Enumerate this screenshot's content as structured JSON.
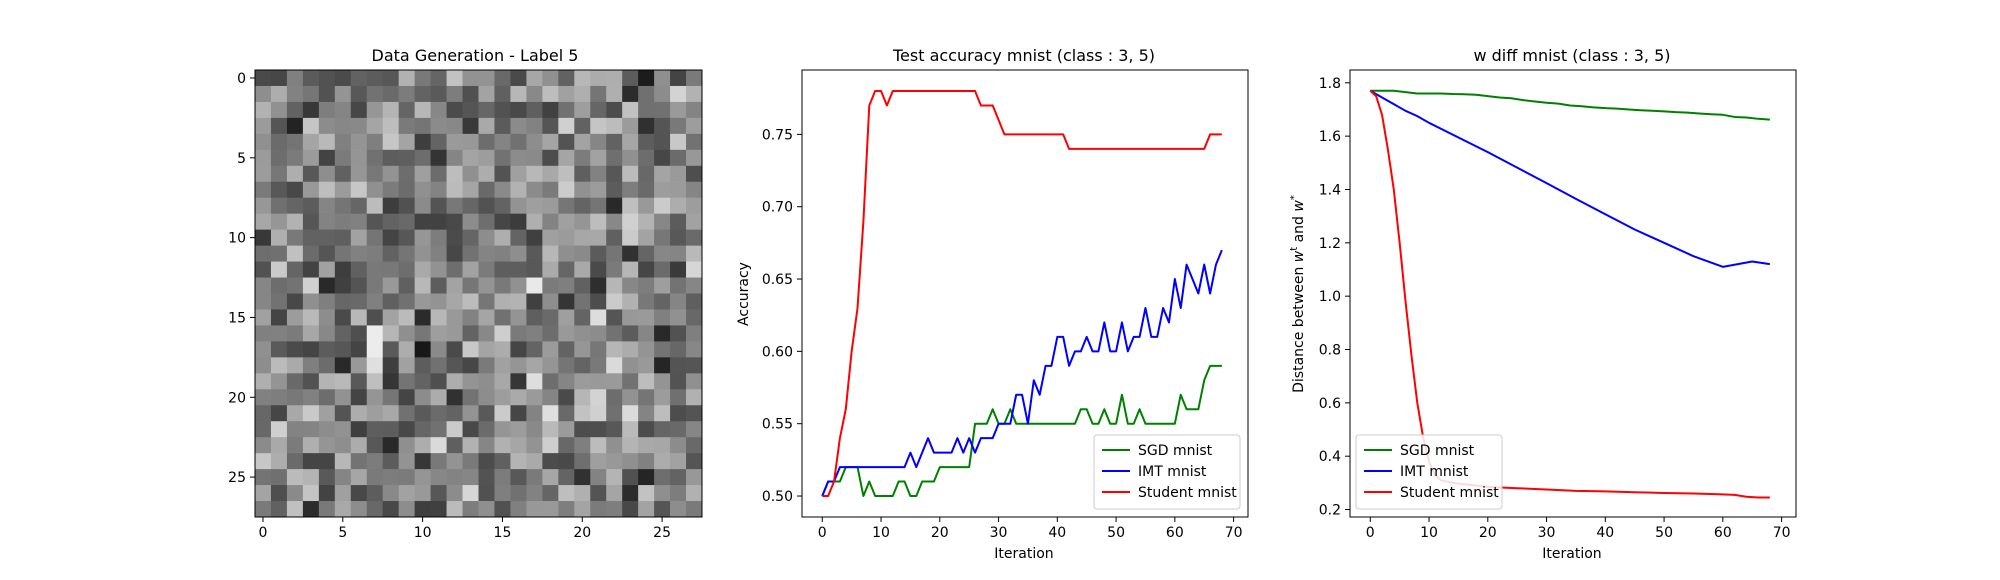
{
  "chart_data": [
    {
      "type": "heatmap",
      "title": "Data Generation - Label 5",
      "xlabel": "",
      "ylabel": "",
      "xlim": [
        -0.5,
        27.5
      ],
      "ylim": [
        27.5,
        -0.5
      ],
      "x_ticks": [
        0,
        5,
        10,
        15,
        20,
        25
      ],
      "y_ticks": [
        0,
        5,
        10,
        15,
        20,
        25
      ],
      "rows": 28,
      "cols": 28,
      "colormap": "gray",
      "note_values": "pixel intensities 0-1, 28x28 noise image"
    },
    {
      "type": "line",
      "title": "Test accuracy mnist (class : 3, 5)",
      "xlabel": "Iteration",
      "ylabel": "Accuracy",
      "xlim": [
        -3.45,
        72.45
      ],
      "ylim": [
        0.4855,
        0.7945
      ],
      "x_ticks": [
        0,
        10,
        20,
        30,
        40,
        50,
        60,
        70
      ],
      "y_ticks": [
        "0.50",
        "0.55",
        "0.60",
        "0.65",
        "0.70",
        "0.75"
      ],
      "legend_position": "lower-right",
      "series": [
        {
          "name": "SGD mnist",
          "color": "#008000",
          "x": [
            0,
            1,
            2,
            3,
            4,
            5,
            6,
            7,
            8,
            9,
            10,
            11,
            12,
            13,
            14,
            15,
            16,
            17,
            18,
            19,
            20,
            21,
            22,
            23,
            24,
            25,
            26,
            27,
            28,
            29,
            30,
            31,
            32,
            33,
            34,
            35,
            36,
            37,
            38,
            39,
            40,
            41,
            42,
            43,
            44,
            45,
            46,
            47,
            48,
            49,
            50,
            51,
            52,
            53,
            54,
            55,
            56,
            57,
            58,
            59,
            60,
            61,
            62,
            63,
            64,
            65,
            66,
            67,
            68
          ],
          "y": [
            0.5,
            0.51,
            0.51,
            0.51,
            0.52,
            0.52,
            0.52,
            0.5,
            0.51,
            0.5,
            0.5,
            0.5,
            0.5,
            0.51,
            0.51,
            0.5,
            0.5,
            0.51,
            0.51,
            0.51,
            0.52,
            0.52,
            0.52,
            0.52,
            0.52,
            0.52,
            0.55,
            0.55,
            0.55,
            0.56,
            0.55,
            0.55,
            0.56,
            0.55,
            0.55,
            0.55,
            0.55,
            0.55,
            0.55,
            0.55,
            0.55,
            0.55,
            0.55,
            0.55,
            0.56,
            0.56,
            0.55,
            0.55,
            0.56,
            0.55,
            0.55,
            0.57,
            0.55,
            0.55,
            0.56,
            0.55,
            0.55,
            0.55,
            0.55,
            0.55,
            0.55,
            0.57,
            0.56,
            0.56,
            0.56,
            0.58,
            0.59,
            0.59,
            0.59
          ]
        },
        {
          "name": "IMT mnist",
          "color": "#0000ff",
          "x": [
            0,
            1,
            2,
            3,
            4,
            5,
            6,
            7,
            8,
            9,
            10,
            11,
            12,
            13,
            14,
            15,
            16,
            17,
            18,
            19,
            20,
            21,
            22,
            23,
            24,
            25,
            26,
            27,
            28,
            29,
            30,
            31,
            32,
            33,
            34,
            35,
            36,
            37,
            38,
            39,
            40,
            41,
            42,
            43,
            44,
            45,
            46,
            47,
            48,
            49,
            50,
            51,
            52,
            53,
            54,
            55,
            56,
            57,
            58,
            59,
            60,
            61,
            62,
            63,
            64,
            65,
            66,
            67,
            68
          ],
          "y": [
            0.5,
            0.51,
            0.51,
            0.52,
            0.52,
            0.52,
            0.52,
            0.52,
            0.52,
            0.52,
            0.52,
            0.52,
            0.52,
            0.52,
            0.52,
            0.53,
            0.52,
            0.53,
            0.54,
            0.53,
            0.53,
            0.53,
            0.53,
            0.54,
            0.53,
            0.54,
            0.53,
            0.54,
            0.54,
            0.54,
            0.55,
            0.55,
            0.55,
            0.57,
            0.57,
            0.55,
            0.58,
            0.57,
            0.59,
            0.59,
            0.61,
            0.61,
            0.59,
            0.6,
            0.6,
            0.61,
            0.6,
            0.6,
            0.62,
            0.6,
            0.6,
            0.62,
            0.6,
            0.61,
            0.61,
            0.63,
            0.61,
            0.61,
            0.63,
            0.62,
            0.65,
            0.63,
            0.66,
            0.65,
            0.64,
            0.66,
            0.64,
            0.66,
            0.67
          ]
        },
        {
          "name": "Student mnist",
          "color": "#ff0000",
          "x": [
            0,
            1,
            2,
            3,
            4,
            5,
            6,
            7,
            8,
            9,
            10,
            11,
            12,
            13,
            14,
            15,
            16,
            17,
            18,
            19,
            20,
            21,
            22,
            23,
            24,
            25,
            26,
            27,
            28,
            29,
            30,
            31,
            32,
            33,
            34,
            35,
            36,
            37,
            38,
            39,
            40,
            41,
            42,
            43,
            44,
            45,
            46,
            47,
            48,
            49,
            50,
            51,
            52,
            53,
            54,
            55,
            56,
            57,
            58,
            59,
            60,
            61,
            62,
            63,
            64,
            65,
            66,
            67,
            68
          ],
          "y": [
            0.5,
            0.5,
            0.51,
            0.54,
            0.56,
            0.6,
            0.63,
            0.69,
            0.77,
            0.78,
            0.78,
            0.77,
            0.78,
            0.78,
            0.78,
            0.78,
            0.78,
            0.78,
            0.78,
            0.78,
            0.78,
            0.78,
            0.78,
            0.78,
            0.78,
            0.78,
            0.78,
            0.77,
            0.77,
            0.77,
            0.76,
            0.75,
            0.75,
            0.75,
            0.75,
            0.75,
            0.75,
            0.75,
            0.75,
            0.75,
            0.75,
            0.75,
            0.74,
            0.74,
            0.74,
            0.74,
            0.74,
            0.74,
            0.74,
            0.74,
            0.74,
            0.74,
            0.74,
            0.74,
            0.74,
            0.74,
            0.74,
            0.74,
            0.74,
            0.74,
            0.74,
            0.74,
            0.74,
            0.74,
            0.74,
            0.74,
            0.75,
            0.75,
            0.75
          ]
        }
      ]
    },
    {
      "type": "line",
      "title": "w diff mnist (class : 3, 5)",
      "xlabel": "Iteration",
      "ylabel_parts": [
        "Distance between ",
        "w",
        "t",
        " and ",
        "w",
        "*"
      ],
      "xlim": [
        -3.45,
        72.45
      ],
      "ylim": [
        0.172,
        1.848
      ],
      "x_ticks": [
        0,
        10,
        20,
        30,
        40,
        50,
        60,
        70
      ],
      "y_ticks": [
        "0.2",
        "0.4",
        "0.6",
        "0.8",
        "1.0",
        "1.2",
        "1.4",
        "1.6",
        "1.8"
      ],
      "legend_position": "lower-left",
      "series": [
        {
          "name": "SGD mnist",
          "color": "#008000",
          "x": [
            0,
            2,
            4,
            6,
            8,
            10,
            12,
            14,
            16,
            18,
            20,
            22,
            24,
            26,
            28,
            30,
            32,
            34,
            36,
            38,
            40,
            42,
            44,
            46,
            48,
            50,
            52,
            54,
            56,
            58,
            60,
            62,
            64,
            66,
            68
          ],
          "y": [
            1.77,
            1.77,
            1.77,
            1.765,
            1.76,
            1.76,
            1.76,
            1.758,
            1.757,
            1.755,
            1.75,
            1.745,
            1.742,
            1.735,
            1.73,
            1.725,
            1.722,
            1.715,
            1.712,
            1.708,
            1.705,
            1.703,
            1.7,
            1.697,
            1.695,
            1.693,
            1.69,
            1.688,
            1.685,
            1.682,
            1.68,
            1.672,
            1.67,
            1.665,
            1.662
          ]
        },
        {
          "name": "IMT mnist",
          "color": "#0000ff",
          "x": [
            0,
            2,
            4,
            6,
            8,
            10,
            15,
            20,
            25,
            30,
            35,
            40,
            45,
            50,
            55,
            60,
            65,
            68
          ],
          "y": [
            1.77,
            1.745,
            1.72,
            1.695,
            1.675,
            1.65,
            1.595,
            1.54,
            1.482,
            1.424,
            1.365,
            1.307,
            1.25,
            1.2,
            1.15,
            1.11,
            1.13,
            1.12
          ]
        },
        {
          "name": "Student mnist",
          "color": "#ff0000",
          "x": [
            0,
            1,
            2,
            3,
            4,
            5,
            6,
            7,
            8,
            9,
            10,
            11,
            12,
            14,
            16,
            18,
            20,
            25,
            30,
            35,
            40,
            45,
            50,
            55,
            60,
            62,
            64,
            66,
            68
          ],
          "y": [
            1.77,
            1.75,
            1.68,
            1.55,
            1.4,
            1.2,
            0.98,
            0.78,
            0.6,
            0.47,
            0.38,
            0.33,
            0.31,
            0.3,
            0.295,
            0.29,
            0.285,
            0.28,
            0.275,
            0.27,
            0.268,
            0.265,
            0.262,
            0.26,
            0.257,
            0.255,
            0.248,
            0.245,
            0.245
          ]
        }
      ]
    }
  ]
}
